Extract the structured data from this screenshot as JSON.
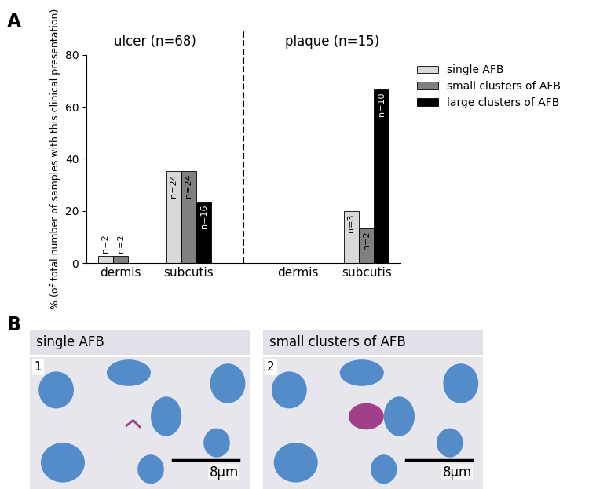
{
  "panel_labels": [
    "A",
    "B"
  ],
  "chart_data": {
    "type": "bar",
    "groups": [
      "ulcer (n=68)",
      "plaque (n=15)"
    ],
    "categories": [
      "dermis",
      "subcutis",
      "dermis",
      "subcutis"
    ],
    "ylabel": "% (of total number of samples with this clinical presentation)",
    "ylim": [
      0,
      80
    ],
    "yticks": [
      0,
      20,
      40,
      60,
      80
    ],
    "legend": "upper left",
    "series": [
      {
        "name": "single AFB",
        "color": "#d9d9d9",
        "values": [
          2.9,
          35.3,
          0,
          20.0
        ],
        "count_labels": [
          "n=2",
          "n=24",
          null,
          "n=3"
        ]
      },
      {
        "name": "small clusters of AFB",
        "color": "#808080",
        "values": [
          2.9,
          35.3,
          0,
          13.3
        ],
        "count_labels": [
          "n=2",
          "n=24",
          null,
          "n=2"
        ]
      },
      {
        "name": "large clusters of AFB",
        "color": "#000000",
        "values": [
          0,
          23.5,
          0,
          66.7
        ],
        "count_labels": [
          null,
          "n=16",
          null,
          "n=10"
        ]
      }
    ]
  },
  "images": [
    {
      "title": "single AFB",
      "number": "1",
      "scale_bar": "8µm"
    },
    {
      "title": "small clusters of AFB",
      "number": "2",
      "scale_bar": "8µm"
    }
  ]
}
